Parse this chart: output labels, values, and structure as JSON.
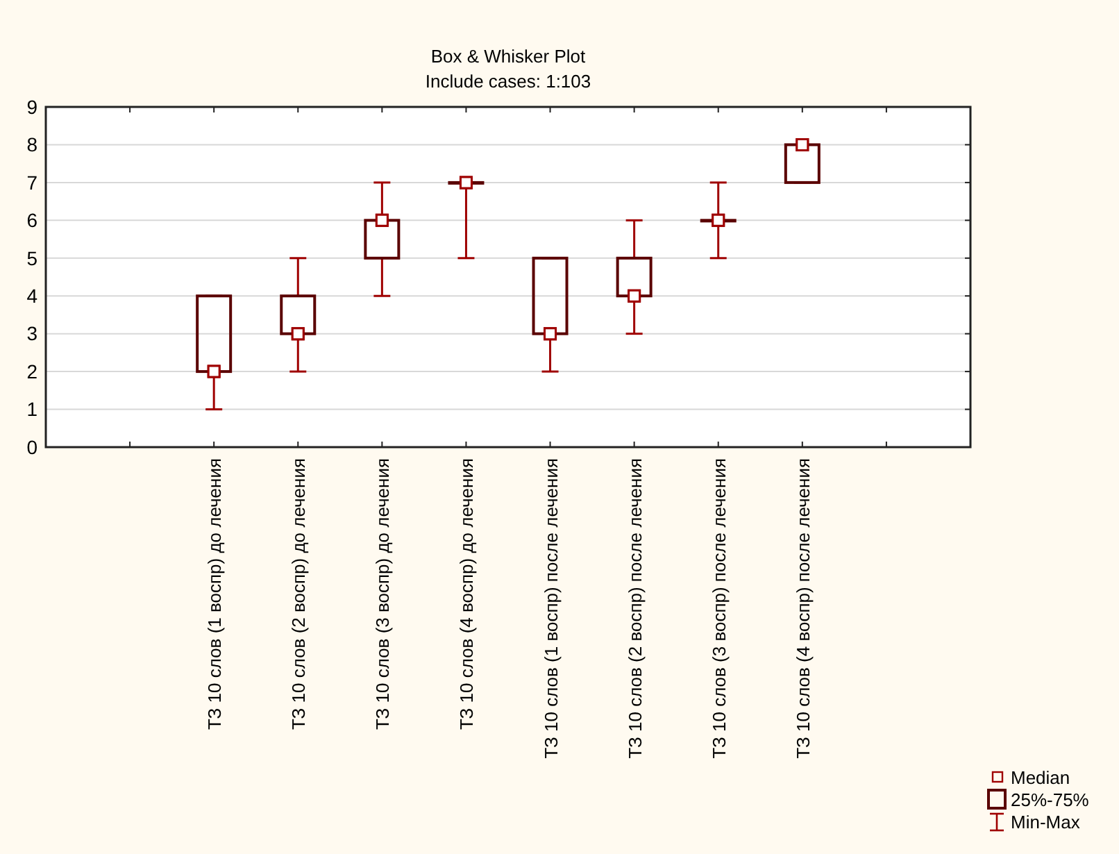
{
  "chart_data": {
    "type": "box",
    "title": "Box & Whisker Plot",
    "subtitle": "Include cases: 1:103",
    "categories": [
      null,
      null,
      "ТЗ 10 слов (1 воспр) до лечения",
      "ТЗ 10 слов (2 воспр) до лечения",
      "ТЗ 10 слов (3 воспр) до лечения",
      "ТЗ 10 слов (4 воспр) до лечения",
      "ТЗ 10 слов (1 воспр) после лечения",
      "ТЗ 10 слов (2 воспр) после лечения",
      "ТЗ 10 слов (3 воспр) после лечения",
      "ТЗ 10 слов (4 воспр) после лечения",
      null,
      null
    ],
    "series": [
      {
        "color": "#5a0000",
        "boxes": [
          null,
          null,
          {
            "low": 1,
            "q1": 2,
            "median": 2,
            "q3": 4,
            "high": 4
          },
          {
            "low": 2,
            "q1": 3,
            "median": 3,
            "q3": 4,
            "high": 5
          },
          {
            "low": 4,
            "q1": 5,
            "median": 6,
            "q3": 6,
            "high": 7
          },
          {
            "low": 5,
            "q1": 7,
            "median": 7,
            "q3": 7,
            "high": 7
          },
          {
            "low": 2,
            "q1": 3,
            "median": 3,
            "q3": 5,
            "high": 5
          },
          {
            "low": 3,
            "q1": 4,
            "median": 4,
            "q3": 5,
            "high": 6
          },
          {
            "low": 5,
            "q1": 6,
            "median": 6,
            "q3": 6,
            "high": 7
          },
          {
            "low": 7,
            "q1": 7,
            "median": 8,
            "q3": 8,
            "high": 8
          },
          null,
          null
        ]
      },
      {
        "type": "scatter",
        "color": "#9f0000",
        "x": [
          "ТЗ 10 слов (1 воспр) до лечения",
          "ТЗ 10 слов (2 воспр) до лечения",
          "ТЗ 10 слов (3 воспр) до лечения",
          "ТЗ 10 слов (4 воспр) до лечения",
          "ТЗ 10 слов (1 воспр) после лечения",
          "ТЗ 10 слов (2 воспр) после лечения",
          "ТЗ 10 слов (3 воспр) после лечения",
          "ТЗ 10 слов (4 воспр) после лечения"
        ],
        "values": [
          2,
          3,
          6,
          7,
          3,
          4,
          6,
          8
        ]
      }
    ],
    "ylim": [
      0,
      9
    ],
    "yticks": [
      0,
      1,
      2,
      3,
      4,
      5,
      6,
      7,
      8,
      9
    ],
    "grid": "y",
    "marker": "square",
    "annotations": [
      "Median",
      "25%-75%",
      "Min-Max"
    ]
  }
}
